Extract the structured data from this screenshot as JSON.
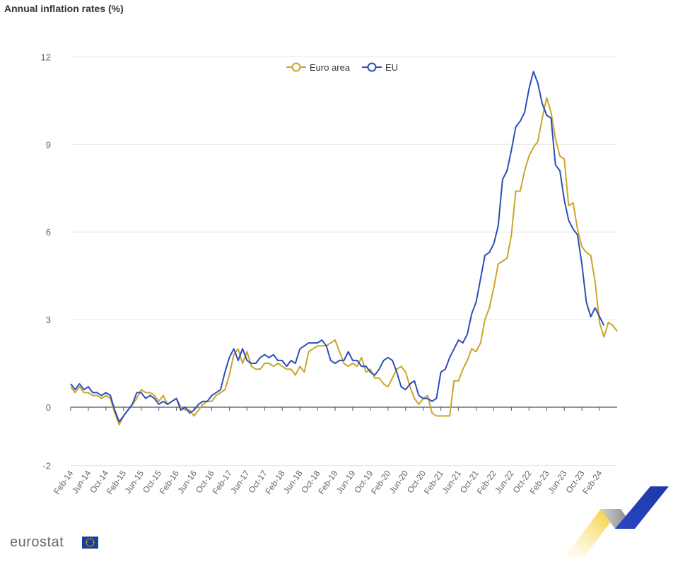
{
  "title": "Annual inflation rates (%)",
  "logo_text": "eurostat",
  "colors": {
    "euro_area": "#c9a62a",
    "eu": "#2b4fb8",
    "grid": "#e6e6e6",
    "axis": "#555555",
    "tick": "#666666"
  },
  "chart_data": {
    "type": "line",
    "title": "Annual inflation rates (%)",
    "xlabel": "",
    "ylabel": "",
    "ylim": [
      -2,
      12
    ],
    "yticks": [
      -2,
      0,
      3,
      6,
      9,
      12
    ],
    "grid": true,
    "legend": "top-center",
    "start_month": "2014-02",
    "x_tick_labels": [
      "Feb-14",
      "Jun-14",
      "Oct-14",
      "Feb-15",
      "Jun-15",
      "Oct-15",
      "Feb-16",
      "Jun-16",
      "Oct-16",
      "Feb-17",
      "Jun-17",
      "Oct-17",
      "Feb-18",
      "Jun-18",
      "Oct-18",
      "Feb-19",
      "Jun-19",
      "Oct-19",
      "Feb-20",
      "Jun-20",
      "Oct-20",
      "Feb-21",
      "Jun-21",
      "Oct-21",
      "Feb-22",
      "Jun-22",
      "Oct-22",
      "Feb-23",
      "Jun-23",
      "Oct-23",
      "Feb-24"
    ],
    "series": [
      {
        "name": "Euro area",
        "values": [
          0.7,
          0.5,
          0.7,
          0.5,
          0.5,
          0.4,
          0.4,
          0.3,
          0.4,
          0.3,
          -0.2,
          -0.6,
          -0.3,
          -0.1,
          0.1,
          0.3,
          0.6,
          0.5,
          0.5,
          0.4,
          0.2,
          0.4,
          0.1,
          0.2,
          0.3,
          0.0,
          -0.1,
          -0.1,
          -0.3,
          -0.1,
          0.1,
          0.2,
          0.2,
          0.4,
          0.5,
          0.6,
          1.1,
          1.8,
          2.0,
          1.5,
          1.9,
          1.4,
          1.3,
          1.3,
          1.5,
          1.5,
          1.4,
          1.5,
          1.4,
          1.3,
          1.3,
          1.1,
          1.4,
          1.2,
          1.9,
          2.0,
          2.1,
          2.1,
          2.1,
          2.2,
          2.3,
          1.9,
          1.5,
          1.4,
          1.5,
          1.4,
          1.7,
          1.2,
          1.3,
          1.0,
          1.0,
          0.8,
          0.7,
          1.0,
          1.3,
          1.4,
          1.2,
          0.7,
          0.3,
          0.1,
          0.3,
          0.4,
          -0.2,
          -0.3,
          -0.3,
          -0.3,
          -0.3,
          0.9,
          0.9,
          1.3,
          1.6,
          2.0,
          1.9,
          2.2,
          3.0,
          3.4,
          4.1,
          4.9,
          5.0,
          5.1,
          5.9,
          7.4,
          7.4,
          8.1,
          8.6,
          8.9,
          9.1,
          9.9,
          10.6,
          10.1,
          9.2,
          8.6,
          8.5,
          6.9,
          7.0,
          6.1,
          5.5,
          5.3,
          5.2,
          4.3,
          2.9,
          2.4,
          2.9,
          2.8,
          2.6
        ]
      },
      {
        "name": "EU",
        "values": [
          0.8,
          0.6,
          0.8,
          0.6,
          0.7,
          0.5,
          0.5,
          0.4,
          0.5,
          0.4,
          -0.1,
          -0.5,
          -0.3,
          -0.1,
          0.1,
          0.5,
          0.5,
          0.3,
          0.4,
          0.3,
          0.1,
          0.2,
          0.1,
          0.2,
          0.3,
          -0.1,
          0.0,
          -0.2,
          -0.1,
          0.1,
          0.2,
          0.2,
          0.4,
          0.5,
          0.6,
          1.2,
          1.7,
          2.0,
          1.6,
          2.0,
          1.6,
          1.5,
          1.5,
          1.7,
          1.8,
          1.7,
          1.8,
          1.6,
          1.6,
          1.4,
          1.6,
          1.5,
          2.0,
          2.1,
          2.2,
          2.2,
          2.2,
          2.3,
          2.1,
          1.6,
          1.5,
          1.6,
          1.6,
          1.9,
          1.6,
          1.6,
          1.4,
          1.4,
          1.2,
          1.1,
          1.3,
          1.6,
          1.7,
          1.6,
          1.2,
          0.7,
          0.6,
          0.8,
          0.9,
          0.4,
          0.3,
          0.3,
          0.2,
          0.3,
          1.2,
          1.3,
          1.7,
          2.0,
          2.3,
          2.2,
          2.5,
          3.2,
          3.6,
          4.4,
          5.2,
          5.3,
          5.6,
          6.2,
          7.8,
          8.1,
          8.8,
          9.6,
          9.8,
          10.1,
          10.9,
          11.5,
          11.1,
          10.4,
          10.0,
          9.9,
          8.3,
          8.1,
          7.1,
          6.4,
          6.1,
          5.9,
          4.9,
          3.6,
          3.1,
          3.4,
          3.1,
          2.8
        ]
      }
    ]
  }
}
